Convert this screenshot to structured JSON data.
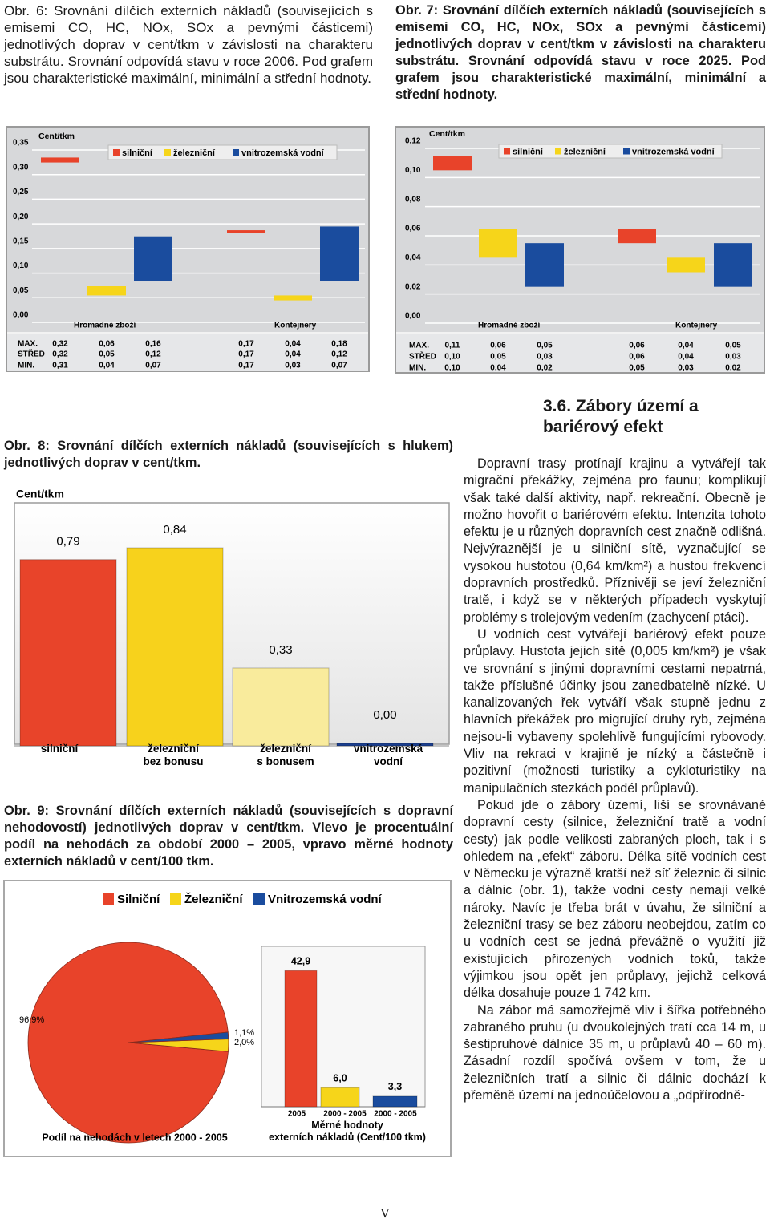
{
  "chart_data": [
    {
      "type": "range_bar",
      "caption": "Obr. 6: Srovnání dílčích externích nákladů (souvisejících s emisemi CO, HC, NOx, SOx a pevnými částicemi) jednotlivých doprav v cent/tkm v závislosti na charakteru substrátu. Srovnání odpovídá stavu v roce 2006. Pod grafem jsou charakteristické maximální, minimální a střední hodnoty.",
      "ylabel": "Cent/tkm",
      "groups": [
        "Hromadné zboží",
        "Kontejnery"
      ],
      "row_labels": [
        "MAX.",
        "STŘED",
        "MIN."
      ],
      "ylim": [
        0,
        0.35
      ],
      "yticks": [
        {
          "value": 0,
          "label": "0,00"
        },
        {
          "value": 0.05,
          "label": "0,05"
        },
        {
          "value": 0.1,
          "label": "0,10"
        },
        {
          "value": 0.15,
          "label": "0,15"
        },
        {
          "value": 0.2,
          "label": "0,20"
        },
        {
          "value": 0.25,
          "label": "0,25"
        },
        {
          "value": 0.3,
          "label": "0,30"
        },
        {
          "value": 0.35,
          "label": "0,35"
        }
      ],
      "grid": true,
      "series": [
        {
          "name": "silniční",
          "color": "#e8432a",
          "max": [
            0.32,
            0.17
          ],
          "mid": [
            0.32,
            0.17
          ],
          "min": [
            0.31,
            0.17
          ],
          "max_labels": [
            "0,32",
            "0,17"
          ],
          "mid_labels": [
            "0,32",
            "0,17"
          ],
          "min_labels": [
            "0,31",
            "0,17"
          ]
        },
        {
          "name": "železniční",
          "color": "#f6d51a",
          "max": [
            0.06,
            0.04
          ],
          "mid": [
            0.05,
            0.04
          ],
          "min": [
            0.04,
            0.03
          ],
          "max_labels": [
            "0,06",
            "0,04"
          ],
          "mid_labels": [
            "0,05",
            "0,04"
          ],
          "min_labels": [
            "0,04",
            "0,03"
          ]
        },
        {
          "name": "vnitrozemská vodní",
          "color": "#1a4c9e",
          "max": [
            0.16,
            0.18
          ],
          "mid": [
            0.12,
            0.12
          ],
          "min": [
            0.07,
            0.07
          ],
          "max_labels": [
            "0,16",
            "0,18"
          ],
          "mid_labels": [
            "0,12",
            "0,12"
          ],
          "min_labels": [
            "0,07",
            "0,07"
          ]
        }
      ]
    },
    {
      "type": "range_bar",
      "caption": "Obr. 7: Srovnání dílčích externích nákladů (souvisejících s emisemi CO, HC, NOx, SOx a pevnými částicemi) jednotlivých doprav v cent/tkm v závislosti na charakteru substrátu. Srovnání odpovídá stavu v roce 2025. Pod grafem jsou charakteristické maximální, minimální a střední hodnoty.",
      "ylabel": "Cent/tkm",
      "groups": [
        "Hromadné zboží",
        "Kontejnery"
      ],
      "row_labels": [
        "MAX.",
        "STŘED",
        "MIN."
      ],
      "ylim": [
        0,
        0.12
      ],
      "yticks": [
        {
          "value": 0,
          "label": "0,00"
        },
        {
          "value": 0.02,
          "label": "0,02"
        },
        {
          "value": 0.04,
          "label": "0,04"
        },
        {
          "value": 0.06,
          "label": "0,06"
        },
        {
          "value": 0.08,
          "label": "0,08"
        },
        {
          "value": 0.1,
          "label": "0,10"
        },
        {
          "value": 0.12,
          "label": "0,12"
        }
      ],
      "grid": true,
      "series": [
        {
          "name": "silniční",
          "color": "#e8432a",
          "max": [
            0.11,
            0.06
          ],
          "mid": [
            0.1,
            0.06
          ],
          "min": [
            0.1,
            0.05
          ],
          "max_labels": [
            "0,11",
            "0,06"
          ],
          "mid_labels": [
            "0,10",
            "0,06"
          ],
          "min_labels": [
            "0,10",
            "0,05"
          ]
        },
        {
          "name": "železniční",
          "color": "#f6d51a",
          "max": [
            0.06,
            0.04
          ],
          "mid": [
            0.05,
            0.04
          ],
          "min": [
            0.04,
            0.03
          ],
          "max_labels": [
            "0,06",
            "0,04"
          ],
          "mid_labels": [
            "0,05",
            "0,04"
          ],
          "min_labels": [
            "0,04",
            "0,03"
          ]
        },
        {
          "name": "vnitrozemská vodní",
          "color": "#1a4c9e",
          "max": [
            0.05,
            0.05
          ],
          "mid": [
            0.03,
            0.03
          ],
          "min": [
            0.02,
            0.02
          ],
          "max_labels": [
            "0,05",
            "0,05"
          ],
          "mid_labels": [
            "0,03",
            "0,03"
          ],
          "min_labels": [
            "0,02",
            "0,02"
          ]
        }
      ]
    },
    {
      "type": "bar",
      "caption": "Obr. 8: Srovnání dílčích externích nákladů (souvisejících s hlukem) jednotlivých doprav v cent/tkm.",
      "ylabel": "Cent/tkm",
      "categories": [
        "silniční",
        "železniční\nbez bonusu",
        "železniční\ns bonusem",
        "vnitrozemská\nvodní"
      ],
      "values": [
        0.79,
        0.84,
        0.33,
        0.0
      ],
      "value_labels": [
        "0,79",
        "0,84",
        "0,33",
        "0,00"
      ],
      "colors": [
        "#e8442a",
        "#f7d21c",
        "#f9eb9c",
        "#1b3f8f"
      ],
      "ylim": [
        0,
        1
      ]
    },
    {
      "type": "pie",
      "caption": "Obr. 9: Srovnání dílčích externích nákladů (souvisejících s dopravní nehodovostí) jednotlivých doprav v cent/tkm. Vlevo je procentuální podíl na nehodách za období 2000 – 2005, vpravo měrné hodnoty externích nákladů v cent/100 tkm.",
      "xlabel": "Podíl na nehodách v letech 2000 - 2005",
      "categories": [
        "Silniční",
        "Železniční",
        "Vnitrozemská vodní"
      ],
      "values": [
        96.9,
        2.0,
        1.1
      ],
      "value_labels": [
        "96,9%",
        "2,0%",
        "1,1%"
      ],
      "colors": [
        "#e8432a",
        "#f6d51a",
        "#1a4c9e"
      ]
    },
    {
      "type": "bar",
      "xlabel": "Měrné hodnoty\nexterních nákladů (Cent/100 tkm)",
      "categories": [
        "2005",
        "2000 - 2005",
        "2000 - 2005"
      ],
      "values": [
        42.9,
        6.0,
        3.3
      ],
      "value_labels": [
        "42,9",
        "6,0",
        "3,3"
      ],
      "colors": [
        "#e8432a",
        "#f6d51a",
        "#1a4c9e"
      ],
      "ylim": [
        0,
        45
      ]
    }
  ],
  "document": {
    "heading": "3.6. Zábory území a bariérový efekt",
    "paragraphs": [
      "Dopravní trasy protínají krajinu a vytvářejí tak migrační překážky, zejména pro faunu; komplikují však také další aktivity, např. rekreační. Obecně je možno hovořit o bariérovém efektu. Intenzita tohoto efektu je u různých dopravních cest značně odlišná. Nejvýraznější je u silniční sítě, vyznačující se vysokou hustotou (0,64 km/km²) a hustou frekvencí dopravních prostředků. Příznivěji se jeví železniční tratě, i když se v některých případech vyskytují problémy s trolejovým vedením (zachycení ptáci).",
      "U vodních cest vytvářejí bariérový efekt pouze průplavy. Hustota jejich sítě (0,005 km/km²) je však ve srovnání s jinými dopravními cestami nepatrná, takže příslušné účinky jsou zanedbatelně nízké. U kanalizovaných řek vytváří však stupně jednu z hlavních překážek pro migrující druhy ryb, zejména nejsou-li vybaveny spolehlivě fungujícími rybovody. Vliv na rekraci v krajině je nízký a částečně i pozitivní (možnosti turistiky a cykloturistiky na manipulačních stezkách podél průplavů).",
      "Pokud jde o zábory území, liší se srovnávané dopravní cesty (silnice, železniční tratě a vodní cesty) jak podle velikosti zabraných ploch, tak i s ohledem na „efekt“ záboru. Délka sítě vodních cest v Německu je výrazně kratší než síť železnic či silnic a dálnic (obr. 1), takže vodní cesty nemají velké nároky. Navíc je třeba brát v úvahu, že silniční a železniční trasy se bez záboru neobejdou, zatím co u vodních cest se jedná převážně o využití již existujících přirozených vodních toků, takže výjimkou jsou opět jen průplavy, jejichž celková délka dosahuje pouze 1 742 km.",
      "Na zábor má samozřejmě vliv i šířka potřebného zabraného pruhu (u dvoukolejných tratí cca 14 m, u šestipruhové dálnice 35 m, u průplavů 40 – 60 m). Zásadní rozdíl spočívá ovšem v tom, že u železničních tratí a silnic či dálnic dochází k přeměně území na jednoúčelovou a „odpřírodně-"
    ],
    "page_number": "V"
  }
}
